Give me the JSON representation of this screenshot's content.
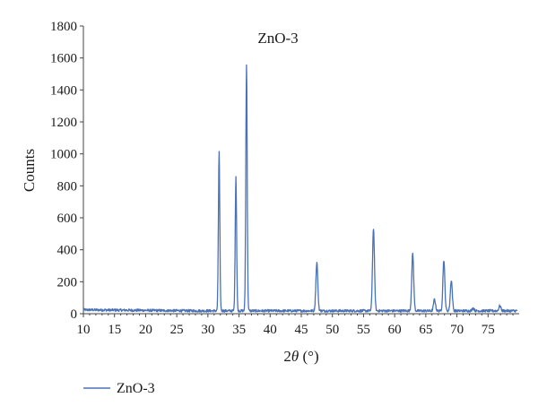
{
  "chart_data": {
    "type": "line",
    "title": "ZnO-3",
    "xlabel_prefix": "2",
    "xlabel_theta": "θ",
    "xlabel_suffix": " (°)",
    "ylabel": "Counts",
    "xlim": [
      10,
      80
    ],
    "ylim": [
      0,
      1800
    ],
    "x_ticks": [
      10,
      15,
      20,
      25,
      30,
      35,
      40,
      45,
      50,
      55,
      60,
      65,
      70,
      75
    ],
    "y_ticks": [
      0,
      200,
      400,
      600,
      800,
      1000,
      1200,
      1400,
      1600,
      1800
    ],
    "grid": false,
    "legend_position": "bottom-left",
    "series": [
      {
        "name": "ZnO-3",
        "color": "#4a72b8",
        "baseline": 18,
        "peaks": [
          {
            "x": 31.8,
            "y": 1010
          },
          {
            "x": 34.5,
            "y": 860
          },
          {
            "x": 36.2,
            "y": 1555
          },
          {
            "x": 47.5,
            "y": 320
          },
          {
            "x": 56.6,
            "y": 535
          },
          {
            "x": 62.9,
            "y": 375
          },
          {
            "x": 66.4,
            "y": 90
          },
          {
            "x": 67.9,
            "y": 335
          },
          {
            "x": 69.1,
            "y": 210
          },
          {
            "x": 72.6,
            "y": 35
          },
          {
            "x": 76.9,
            "y": 50
          }
        ]
      }
    ]
  }
}
